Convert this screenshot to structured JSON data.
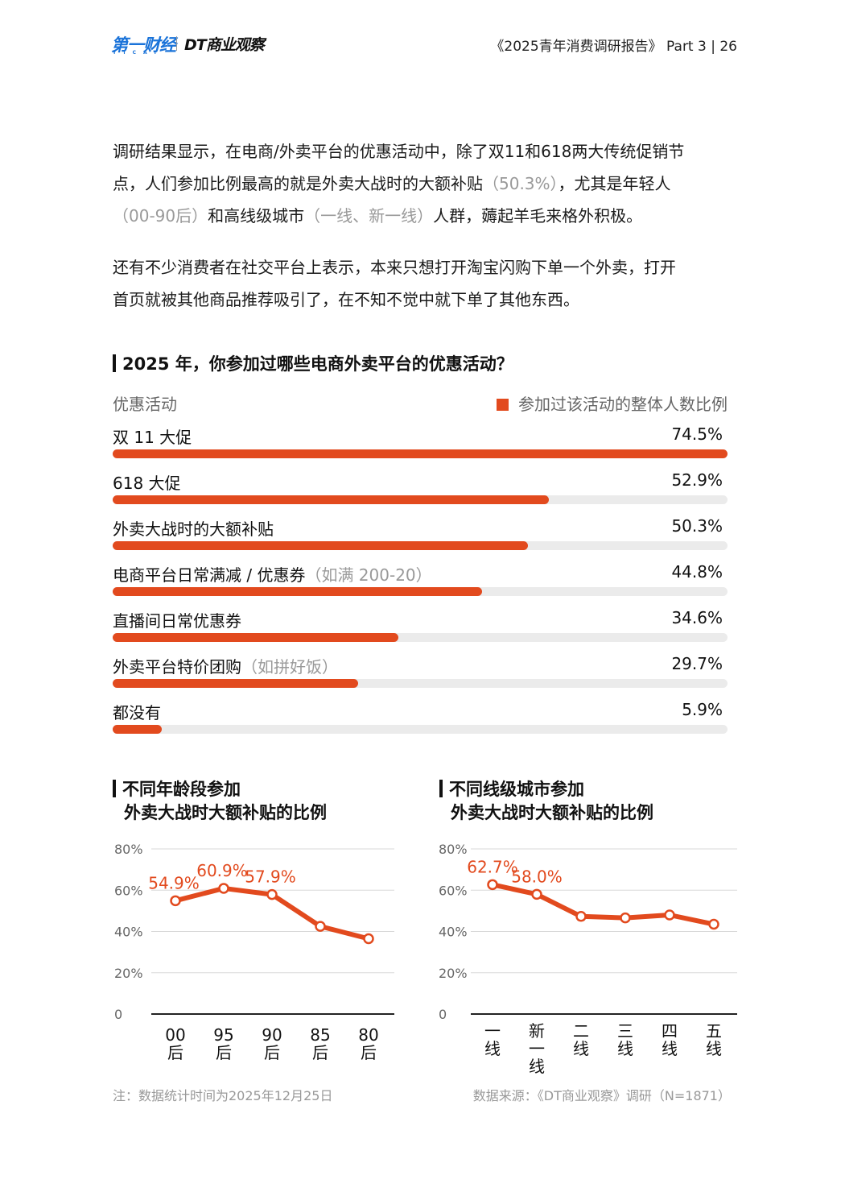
{
  "header": {
    "logo_primary": "第一财经",
    "logo_primary_sub": "YICAI",
    "logo_secondary": "DT商业观察",
    "report_ref": "《2025青年消费调研报告》 Part 3 | 26"
  },
  "body": {
    "para1_line1": "调研结果显示，在电商/外卖平台的优惠活动中，除了双11和618两大传统促销节",
    "para1_line2a": "点，人们参加比例最高的就是外卖大战时的大额补贴",
    "para1_line2b": "（50.3%）",
    "para1_line2c": "，尤其是年轻人",
    "para1_line3a": "（00-90后）",
    "para1_line3b": "和高线级城市",
    "para1_line3c": "（一线、新一线）",
    "para1_line3d": "人群，薅起羊毛来格外积极。",
    "para2_line1": "还有不少消费者在社交平台上表示，本来只想打开淘宝闪购下单一个外卖，打开",
    "para2_line2": "首页就被其他商品推荐吸引了，在不知不觉中就下单了其他东西。"
  },
  "colors": {
    "accent": "#e24a1e",
    "track": "#ebebeb"
  },
  "chart_data": [
    {
      "type": "bar",
      "title": "2025 年，你参加过哪些电商外卖平台的优惠活动？",
      "category_header": "优惠活动",
      "categories": [
        "双 11 大促",
        "618 大促",
        "外卖大战时的大额补贴",
        "电商平台日常满减 / 优惠券",
        "直播间日常优惠券",
        "外卖平台特价团购",
        "都没有"
      ],
      "category_notes": [
        "",
        "",
        "",
        "（如满 200-20）",
        "",
        "（如拼好饭）",
        ""
      ],
      "series": [
        {
          "name": "参加过该活动的整体人数比例",
          "values": [
            74.5,
            52.9,
            50.3,
            44.8,
            34.6,
            29.7,
            5.9
          ]
        }
      ],
      "value_labels": [
        "74.5%",
        "52.9%",
        "50.3%",
        "44.8%",
        "34.6%",
        "29.7%",
        "5.9%"
      ],
      "orientation": "horizontal",
      "max": 74.5
    },
    {
      "type": "line",
      "title_line1": "不同年龄段参加",
      "title_line2": "外卖大战时大额补贴的比例",
      "categories": [
        [
          "00",
          "后"
        ],
        [
          "95",
          "后"
        ],
        [
          "90",
          "后"
        ],
        [
          "85",
          "后"
        ],
        [
          "80",
          "后"
        ]
      ],
      "values": [
        54.9,
        60.9,
        57.9,
        42.5,
        36.5
      ],
      "data_labels": [
        "54.9%",
        "60.9%",
        "57.9%",
        "",
        ""
      ],
      "yticks": [
        "0",
        "20%",
        "40%",
        "60%",
        "80%"
      ],
      "ylim": [
        0,
        80
      ]
    },
    {
      "type": "line",
      "title_line1": "不同线级城市参加",
      "title_line2": "外卖大战时大额补贴的比例",
      "categories": [
        [
          "一",
          "线"
        ],
        [
          "新",
          "一",
          "线"
        ],
        [
          "二",
          "线"
        ],
        [
          "三",
          "线"
        ],
        [
          "四",
          "线"
        ],
        [
          "五",
          "线"
        ]
      ],
      "values": [
        62.7,
        58.0,
        47.3,
        46.6,
        48.0,
        43.5
      ],
      "data_labels": [
        "62.7%",
        "58.0%",
        "",
        "",
        "",
        ""
      ],
      "yticks": [
        "0",
        "20%",
        "40%",
        "60%",
        "80%"
      ],
      "ylim": [
        0,
        80
      ]
    }
  ],
  "footer": {
    "note": "注：数据统计时间为2025年12月25日",
    "source": "数据来源：《DT商业观察》调研（N=1871）"
  }
}
